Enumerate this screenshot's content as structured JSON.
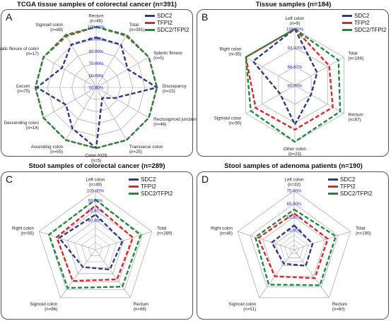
{
  "colors": {
    "SDC2": "#2e3a87",
    "TFPI2": "#e0262a",
    "SDC2/TFPI2": "#1f8a3c",
    "grid": "#9a9a9a",
    "tick": "#2a2ad0"
  },
  "chart_data": [
    {
      "type": "radar",
      "panel": "A",
      "title": "TCGA tissue samples of colorectal cancer (n=391)",
      "axes": [
        {
          "name": "Rectum",
          "n": "(n=46)"
        },
        {
          "name": "Total",
          "n": "(n=391)"
        },
        {
          "name": "Splenic flexure",
          "n": "(n=5)"
        },
        {
          "name": "Discrepancy",
          "n": "(n=15)"
        },
        {
          "name": "Rectosigmoid junction",
          "n": "(n=46)"
        },
        {
          "name": "Transverse colon",
          "n": "(n=25)"
        },
        {
          "name": "Colon NOS",
          "n": "(n=5)"
        },
        {
          "name": "Ascending colon",
          "n": "(n=55)"
        },
        {
          "name": "Descending colon",
          "n": "(n=14)"
        },
        {
          "name": "Cecum",
          "n": "(n=75)"
        },
        {
          "name": "Hepatic flexure of colon",
          "n": "(n=17)"
        },
        {
          "name": "Sigmoid colon",
          "n": "(n=88)"
        }
      ],
      "ticks": [
        "50.00%",
        "60.00%",
        "70.00%",
        "80.00%",
        "90.00%",
        "100.00%"
      ],
      "range": [
        50,
        100
      ],
      "series": [
        {
          "name": "SDC2",
          "values": [
            91.3,
            90.8,
            80.0,
            100.0,
            67.4,
            60.0,
            100.0,
            89.1,
            78.6,
            98.7,
            82.4,
            90.9
          ]
        },
        {
          "name": "TFPI2",
          "values": [
            100.0,
            99.2,
            100.0,
            100.0,
            100.0,
            100.0,
            100.0,
            100.0,
            100.0,
            100.0,
            100.0,
            98.9
          ]
        },
        {
          "name": "SDC2/TFPI2",
          "values": [
            100.0,
            100.0,
            100.0,
            100.0,
            100.0,
            100.0,
            100.0,
            100.0,
            100.0,
            100.0,
            100.0,
            100.0
          ]
        }
      ]
    },
    {
      "type": "radar",
      "panel": "B",
      "title": "Tissue samples (n=184)",
      "axes": [
        {
          "name": "Left colon",
          "n": "(n=9)"
        },
        {
          "name": "Total",
          "n": "(n=184)"
        },
        {
          "name": "Rectum",
          "n": "(n=67)"
        },
        {
          "name": "Other colon",
          "n": "(n=23)"
        },
        {
          "name": "Sigmoid colon",
          "n": "(n=50)"
        },
        {
          "name": "Right colon",
          "n": "(n=35)"
        }
      ],
      "ticks": [
        "80.00%",
        "86.67%",
        "93.33%",
        "100.00%"
      ],
      "range": [
        80,
        100
      ],
      "series": [
        {
          "name": "SDC2",
          "values": [
            100.0,
            89.1,
            86.6,
            93.9,
            86.0,
            97.1
          ]
        },
        {
          "name": "TFPI2",
          "values": [
            100.0,
            94.0,
            95.5,
            95.7,
            96.0,
            100.0
          ]
        },
        {
          "name": "SDC2/TFPI2",
          "values": [
            100.0,
            97.8,
            98.5,
            100.0,
            98.0,
            100.0
          ]
        }
      ]
    },
    {
      "type": "radar",
      "panel": "C",
      "title": "Stool samples of colorectal cancer (n=289)",
      "axes": [
        {
          "name": "Left colon",
          "n": "(n=49)"
        },
        {
          "name": "Total",
          "n": "(n=289)"
        },
        {
          "name": "Rectum",
          "n": "(n=98)"
        },
        {
          "name": "Sigmoid colon",
          "n": "(n=86)"
        },
        {
          "name": "Right colon",
          "n": "(n=56)"
        }
      ],
      "ticks": [
        "80.00%",
        "86.67%",
        "93.33%",
        "100.00%"
      ],
      "range": [
        60,
        100
      ],
      "series": [
        {
          "name": "SDC2",
          "values": [
            83.7,
            79.2,
            76.5,
            74.4,
            85.7
          ]
        },
        {
          "name": "TFPI2",
          "values": [
            89.8,
            86.5,
            84.7,
            86.0,
            87.5
          ]
        },
        {
          "name": "SDC2/TFPI2",
          "values": [
            93.9,
            92.0,
            90.8,
            91.9,
            92.9
          ]
        }
      ]
    },
    {
      "type": "radar",
      "panel": "D",
      "title": "Stool samples of adenoma patients (n=190)",
      "axes": [
        {
          "name": "Left colon",
          "n": "(n=33)"
        },
        {
          "name": "Total",
          "n": "(n=190)"
        },
        {
          "name": "Rectum",
          "n": "(n=60)"
        },
        {
          "name": "Sigmoid colon",
          "n": "(n=51)"
        },
        {
          "name": "Right colon",
          "n": "(n=46)"
        }
      ],
      "ticks": [
        "45.00%",
        "55.00%",
        "65.00%",
        "75.00%"
      ],
      "range": [
        30,
        75
      ],
      "series": [
        {
          "name": "SDC2",
          "values": [
            48.5,
            44.7,
            45.0,
            43.1,
            47.8
          ]
        },
        {
          "name": "TFPI2",
          "values": [
            57.6,
            56.8,
            56.7,
            54.9,
            58.7
          ]
        },
        {
          "name": "SDC2/TFPI2",
          "values": [
            60.6,
            63.2,
            63.3,
            62.7,
            60.9
          ]
        }
      ]
    }
  ]
}
